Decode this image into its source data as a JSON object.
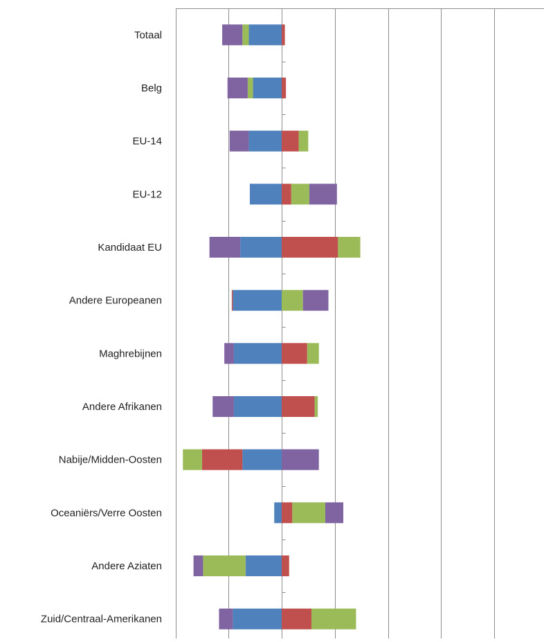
{
  "chart_data": {
    "type": "bar",
    "orientation": "horizontal",
    "stacked": "diverging",
    "grid": true,
    "legend": "none",
    "xlim": [
      -1,
      2.5
    ],
    "categories": [
      "Totaal",
      "Belg",
      "EU-14",
      "EU-12",
      "Kandidaat EU",
      "Andere Europeanen",
      "Maghrebijnen",
      "Andere Afrikanen",
      "Nabije/Midden-Oosten",
      "Oceaniërs/Verre Oosten",
      "Andere Aziaten",
      "Zuid/Centraal-Amerikanen"
    ],
    "series": [
      {
        "color": "#4F81BD",
        "values": [
          -0.31,
          -0.27,
          -0.31,
          -0.3,
          -0.39,
          -0.46,
          -0.45,
          -0.45,
          -0.37,
          -0.07,
          -0.34,
          -0.46
        ]
      },
      {
        "color": "#C0504D",
        "values": [
          0.03,
          0.04,
          0.16,
          0.09,
          0.53,
          -0.01,
          0.24,
          0.31,
          -0.38,
          0.1,
          0.07,
          0.28
        ]
      },
      {
        "color": "#9BBB59",
        "values": [
          -0.06,
          -0.05,
          0.09,
          0.17,
          0.21,
          0.2,
          0.11,
          0.03,
          -0.18,
          0.31,
          -0.4,
          0.42
        ]
      },
      {
        "color": "#8064A2",
        "values": [
          -0.19,
          -0.19,
          -0.18,
          0.26,
          -0.29,
          0.24,
          -0.09,
          -0.2,
          0.35,
          0.17,
          -0.09,
          -0.13
        ]
      }
    ]
  }
}
